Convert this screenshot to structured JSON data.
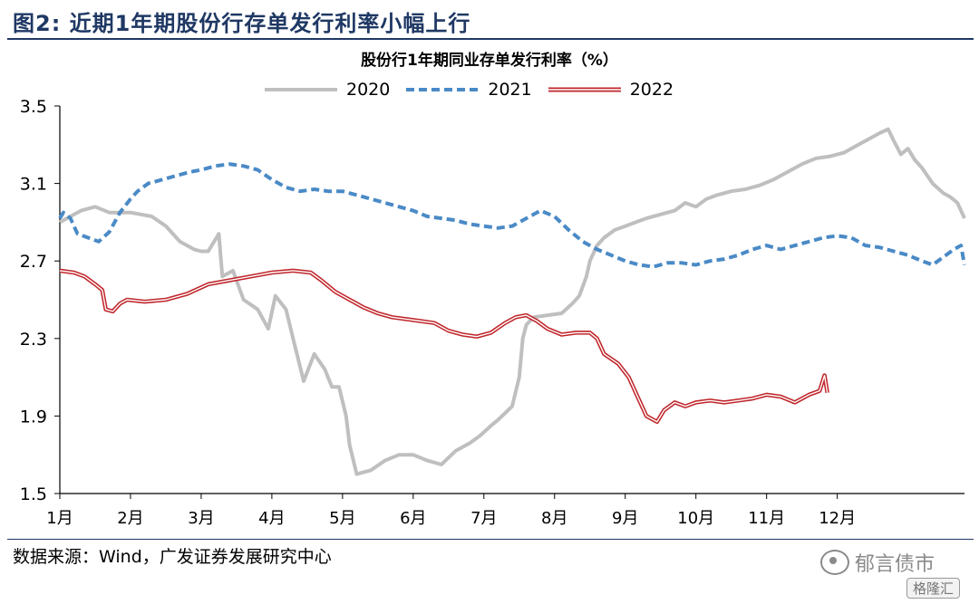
{
  "figure": {
    "label": "图2:",
    "title": "近期1年期股份行存单发行利率小幅上行"
  },
  "source": "数据来源：Wind，广发证券发展研究中心",
  "watermark": "郁言债市",
  "brand": "格隆汇",
  "colors": {
    "s2020": "#bfbfbf",
    "s2021": "#4a8ac6",
    "s2022": "#c0262b",
    "title": "#1f3864"
  },
  "chart_data": {
    "type": "line",
    "title": "股份行1年期同业存单发行利率（%）",
    "xlabel": "",
    "ylabel": "",
    "ylim": [
      1.5,
      3.5
    ],
    "yticks": [
      "3.5",
      "3.1",
      "2.7",
      "2.3",
      "1.9",
      "1.5"
    ],
    "xtick_labels": [
      "1月",
      "2月",
      "3月",
      "4月",
      "5月",
      "6月",
      "7月",
      "8月",
      "9月",
      "10月",
      "11月",
      "12月"
    ],
    "grid": false,
    "legend_position": "top",
    "series": [
      {
        "name": "2020",
        "line_style": "solid",
        "points": [
          [
            0.0,
            2.9
          ],
          [
            0.15,
            2.93
          ],
          [
            0.3,
            2.96
          ],
          [
            0.5,
            2.98
          ],
          [
            0.7,
            2.95
          ],
          [
            1.0,
            2.95
          ],
          [
            1.3,
            2.93
          ],
          [
            1.5,
            2.88
          ],
          [
            1.7,
            2.8
          ],
          [
            1.9,
            2.76
          ],
          [
            2.0,
            2.75
          ],
          [
            2.1,
            2.75
          ],
          [
            2.25,
            2.84
          ],
          [
            2.3,
            2.62
          ],
          [
            2.45,
            2.65
          ],
          [
            2.6,
            2.5
          ],
          [
            2.8,
            2.45
          ],
          [
            2.95,
            2.35
          ],
          [
            3.05,
            2.52
          ],
          [
            3.2,
            2.45
          ],
          [
            3.3,
            2.3
          ],
          [
            3.45,
            2.08
          ],
          [
            3.6,
            2.22
          ],
          [
            3.75,
            2.14
          ],
          [
            3.85,
            2.05
          ],
          [
            3.95,
            2.05
          ],
          [
            4.05,
            1.9
          ],
          [
            4.1,
            1.75
          ],
          [
            4.2,
            1.6
          ],
          [
            4.4,
            1.62
          ],
          [
            4.6,
            1.67
          ],
          [
            4.8,
            1.7
          ],
          [
            5.0,
            1.7
          ],
          [
            5.2,
            1.67
          ],
          [
            5.4,
            1.65
          ],
          [
            5.6,
            1.72
          ],
          [
            5.8,
            1.76
          ],
          [
            5.95,
            1.8
          ],
          [
            6.1,
            1.85
          ],
          [
            6.2,
            1.88
          ],
          [
            6.4,
            1.95
          ],
          [
            6.5,
            2.1
          ],
          [
            6.55,
            2.3
          ],
          [
            6.6,
            2.37
          ],
          [
            6.7,
            2.41
          ],
          [
            6.9,
            2.42
          ],
          [
            7.1,
            2.43
          ],
          [
            7.25,
            2.48
          ],
          [
            7.35,
            2.52
          ],
          [
            7.45,
            2.62
          ],
          [
            7.5,
            2.7
          ],
          [
            7.6,
            2.78
          ],
          [
            7.7,
            2.82
          ],
          [
            7.85,
            2.86
          ],
          [
            8.0,
            2.88
          ],
          [
            8.15,
            2.9
          ],
          [
            8.3,
            2.92
          ],
          [
            8.5,
            2.94
          ],
          [
            8.7,
            2.96
          ],
          [
            8.85,
            3.0
          ],
          [
            9.0,
            2.98
          ],
          [
            9.15,
            3.02
          ],
          [
            9.3,
            3.04
          ],
          [
            9.5,
            3.06
          ],
          [
            9.7,
            3.07
          ],
          [
            9.9,
            3.09
          ],
          [
            10.1,
            3.12
          ],
          [
            10.3,
            3.16
          ],
          [
            10.5,
            3.2
          ],
          [
            10.7,
            3.23
          ],
          [
            10.9,
            3.24
          ],
          [
            11.1,
            3.26
          ],
          [
            11.3,
            3.3
          ],
          [
            11.45,
            3.33
          ],
          [
            11.6,
            3.36
          ],
          [
            11.72,
            3.38
          ],
          [
            11.8,
            3.32
          ],
          [
            11.9,
            3.25
          ],
          [
            12.0,
            3.28
          ],
          [
            12.1,
            3.22
          ],
          [
            12.2,
            3.18
          ],
          [
            12.35,
            3.1
          ],
          [
            12.5,
            3.05
          ],
          [
            12.6,
            3.03
          ],
          [
            12.7,
            3.0
          ],
          [
            12.8,
            2.92
          ]
        ]
      },
      {
        "name": "2021",
        "line_style": "dashed",
        "points": [
          [
            0.0,
            2.92
          ],
          [
            0.05,
            2.95
          ],
          [
            0.15,
            2.92
          ],
          [
            0.25,
            2.84
          ],
          [
            0.4,
            2.82
          ],
          [
            0.55,
            2.8
          ],
          [
            0.7,
            2.85
          ],
          [
            0.85,
            2.95
          ],
          [
            1.0,
            3.02
          ],
          [
            1.1,
            3.06
          ],
          [
            1.25,
            3.1
          ],
          [
            1.45,
            3.12
          ],
          [
            1.65,
            3.14
          ],
          [
            1.85,
            3.16
          ],
          [
            2.0,
            3.17
          ],
          [
            2.2,
            3.19
          ],
          [
            2.4,
            3.2
          ],
          [
            2.6,
            3.19
          ],
          [
            2.8,
            3.17
          ],
          [
            3.0,
            3.12
          ],
          [
            3.2,
            3.08
          ],
          [
            3.4,
            3.06
          ],
          [
            3.6,
            3.07
          ],
          [
            3.8,
            3.06
          ],
          [
            4.0,
            3.06
          ],
          [
            4.2,
            3.04
          ],
          [
            4.4,
            3.02
          ],
          [
            4.6,
            3.0
          ],
          [
            4.8,
            2.98
          ],
          [
            5.0,
            2.96
          ],
          [
            5.2,
            2.93
          ],
          [
            5.4,
            2.92
          ],
          [
            5.6,
            2.91
          ],
          [
            5.8,
            2.89
          ],
          [
            6.0,
            2.88
          ],
          [
            6.2,
            2.87
          ],
          [
            6.4,
            2.88
          ],
          [
            6.6,
            2.92
          ],
          [
            6.8,
            2.96
          ],
          [
            7.0,
            2.93
          ],
          [
            7.2,
            2.86
          ],
          [
            7.4,
            2.8
          ],
          [
            7.6,
            2.76
          ],
          [
            7.8,
            2.73
          ],
          [
            8.0,
            2.7
          ],
          [
            8.2,
            2.68
          ],
          [
            8.4,
            2.67
          ],
          [
            8.6,
            2.69
          ],
          [
            8.8,
            2.69
          ],
          [
            9.0,
            2.68
          ],
          [
            9.2,
            2.7
          ],
          [
            9.4,
            2.71
          ],
          [
            9.6,
            2.73
          ],
          [
            9.8,
            2.76
          ],
          [
            10.0,
            2.78
          ],
          [
            10.2,
            2.76
          ],
          [
            10.4,
            2.78
          ],
          [
            10.6,
            2.8
          ],
          [
            10.8,
            2.82
          ],
          [
            11.0,
            2.83
          ],
          [
            11.2,
            2.82
          ],
          [
            11.4,
            2.78
          ],
          [
            11.6,
            2.77
          ],
          [
            11.8,
            2.75
          ],
          [
            12.0,
            2.73
          ],
          [
            12.2,
            2.7
          ],
          [
            12.35,
            2.68
          ],
          [
            12.5,
            2.72
          ],
          [
            12.65,
            2.76
          ],
          [
            12.75,
            2.78
          ],
          [
            12.8,
            2.68
          ]
        ]
      },
      {
        "name": "2022",
        "line_style": "double",
        "points": [
          [
            0.0,
            2.65
          ],
          [
            0.2,
            2.64
          ],
          [
            0.35,
            2.62
          ],
          [
            0.5,
            2.58
          ],
          [
            0.6,
            2.55
          ],
          [
            0.65,
            2.45
          ],
          [
            0.75,
            2.44
          ],
          [
            0.85,
            2.48
          ],
          [
            0.95,
            2.5
          ],
          [
            1.2,
            2.49
          ],
          [
            1.5,
            2.5
          ],
          [
            1.8,
            2.53
          ],
          [
            2.1,
            2.58
          ],
          [
            2.4,
            2.6
          ],
          [
            2.7,
            2.62
          ],
          [
            3.0,
            2.64
          ],
          [
            3.3,
            2.65
          ],
          [
            3.55,
            2.64
          ],
          [
            3.7,
            2.6
          ],
          [
            3.9,
            2.54
          ],
          [
            4.1,
            2.5
          ],
          [
            4.3,
            2.46
          ],
          [
            4.5,
            2.43
          ],
          [
            4.7,
            2.41
          ],
          [
            4.9,
            2.4
          ],
          [
            5.1,
            2.39
          ],
          [
            5.3,
            2.38
          ],
          [
            5.5,
            2.34
          ],
          [
            5.7,
            2.32
          ],
          [
            5.9,
            2.31
          ],
          [
            6.1,
            2.33
          ],
          [
            6.3,
            2.38
          ],
          [
            6.45,
            2.41
          ],
          [
            6.6,
            2.42
          ],
          [
            6.75,
            2.39
          ],
          [
            6.9,
            2.35
          ],
          [
            7.1,
            2.32
          ],
          [
            7.3,
            2.33
          ],
          [
            7.5,
            2.33
          ],
          [
            7.6,
            2.3
          ],
          [
            7.7,
            2.22
          ],
          [
            7.9,
            2.17
          ],
          [
            8.05,
            2.1
          ],
          [
            8.2,
            1.98
          ],
          [
            8.3,
            1.9
          ],
          [
            8.45,
            1.87
          ],
          [
            8.55,
            1.93
          ],
          [
            8.7,
            1.97
          ],
          [
            8.85,
            1.95
          ],
          [
            9.0,
            1.97
          ],
          [
            9.2,
            1.98
          ],
          [
            9.4,
            1.97
          ],
          [
            9.6,
            1.98
          ],
          [
            9.8,
            1.99
          ],
          [
            10.0,
            2.01
          ],
          [
            10.2,
            2.0
          ],
          [
            10.4,
            1.97
          ],
          [
            10.6,
            2.01
          ],
          [
            10.75,
            2.03
          ],
          [
            10.82,
            2.11
          ],
          [
            10.86,
            2.02
          ]
        ]
      }
    ]
  }
}
